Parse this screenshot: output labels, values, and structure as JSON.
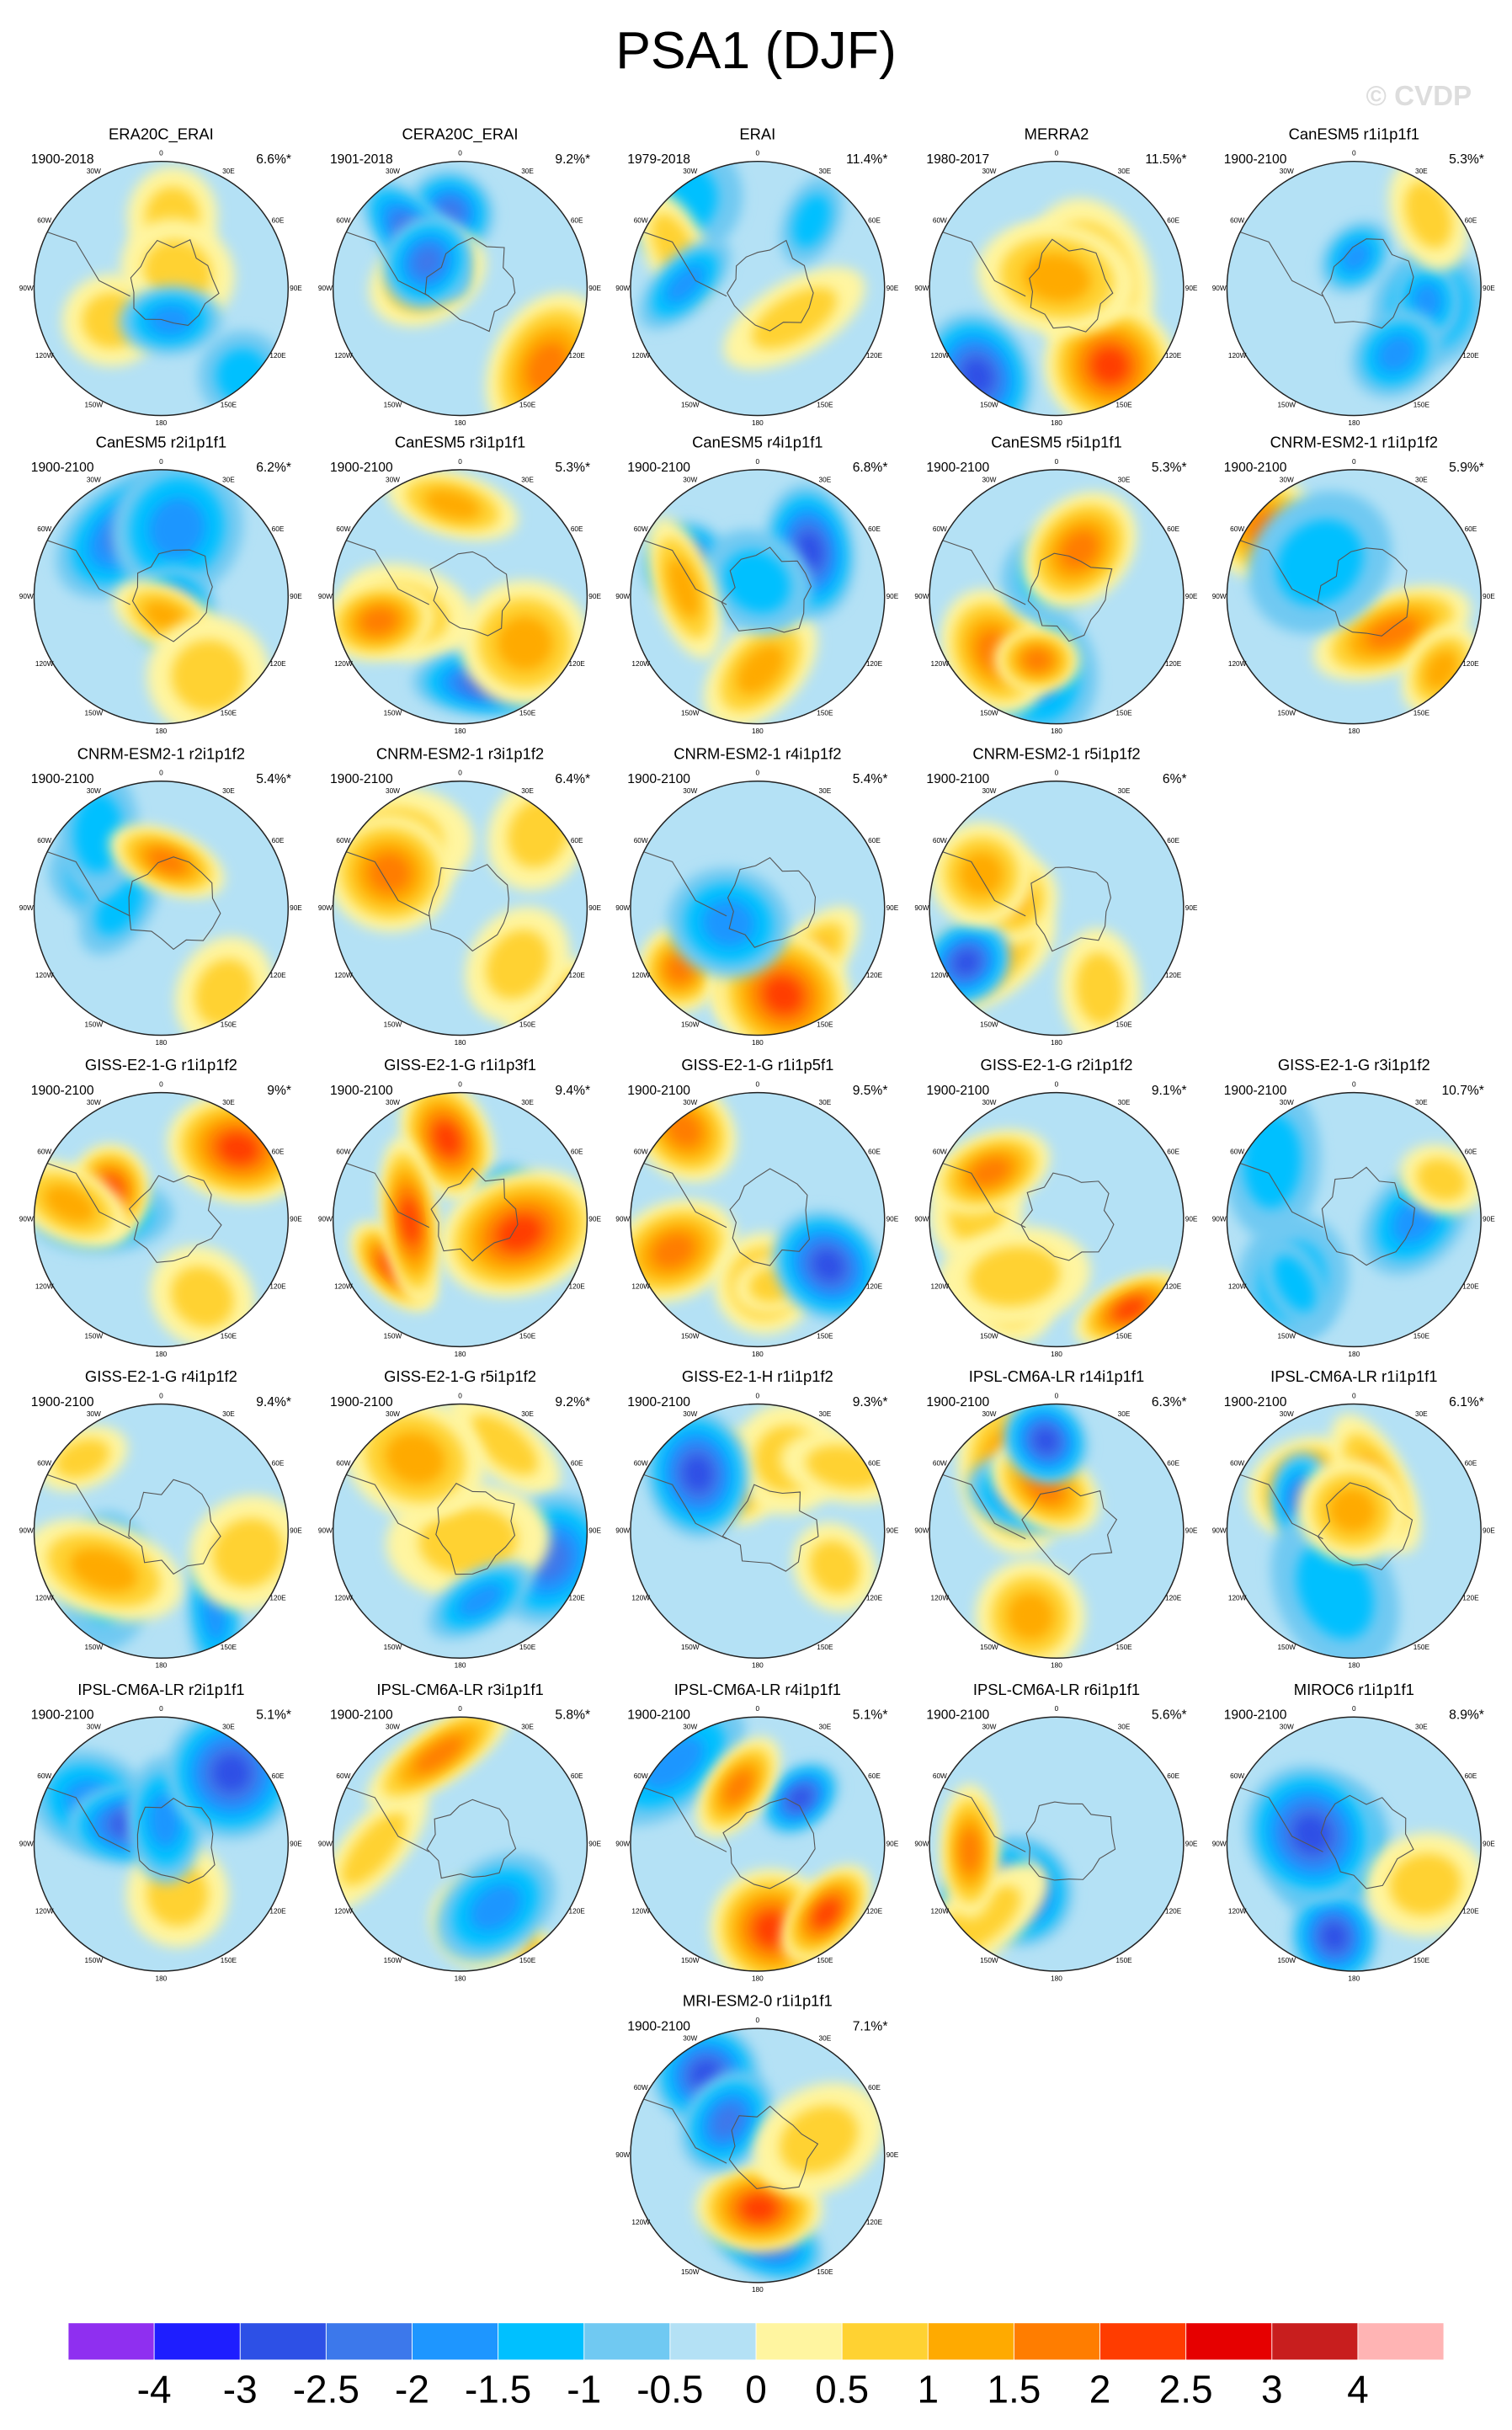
{
  "title": "PSA1 (DJF)",
  "watermark": "© CVDP",
  "longitude_labels": [
    "0",
    "30E",
    "60E",
    "90E",
    "120E",
    "150E",
    "180",
    "150W",
    "120W",
    "90W",
    "60W",
    "30W"
  ],
  "panels": [
    {
      "title": "ERA20C_ERAI",
      "period": "1900-2018",
      "variance": "6.6%*"
    },
    {
      "title": "CERA20C_ERAI",
      "period": "1901-2018",
      "variance": "9.2%*"
    },
    {
      "title": "ERAI",
      "period": "1979-2018",
      "variance": "11.4%*"
    },
    {
      "title": "MERRA2",
      "period": "1980-2017",
      "variance": "11.5%*"
    },
    {
      "title": "CanESM5 r1i1p1f1",
      "period": "1900-2100",
      "variance": "5.3%*"
    },
    {
      "title": "CanESM5 r2i1p1f1",
      "period": "1900-2100",
      "variance": "6.2%*"
    },
    {
      "title": "CanESM5 r3i1p1f1",
      "period": "1900-2100",
      "variance": "5.3%*"
    },
    {
      "title": "CanESM5 r4i1p1f1",
      "period": "1900-2100",
      "variance": "6.8%*"
    },
    {
      "title": "CanESM5 r5i1p1f1",
      "period": "1900-2100",
      "variance": "5.3%*"
    },
    {
      "title": "CNRM-ESM2-1 r1i1p1f2",
      "period": "1900-2100",
      "variance": "5.9%*"
    },
    {
      "title": "CNRM-ESM2-1 r2i1p1f2",
      "period": "1900-2100",
      "variance": "5.4%*"
    },
    {
      "title": "CNRM-ESM2-1 r3i1p1f2",
      "period": "1900-2100",
      "variance": "6.4%*"
    },
    {
      "title": "CNRM-ESM2-1 r4i1p1f2",
      "period": "1900-2100",
      "variance": "5.4%*"
    },
    {
      "title": "CNRM-ESM2-1 r5i1p1f2",
      "period": "1900-2100",
      "variance": "6%*"
    },
    {
      "title": "GISS-E2-1-G r1i1p1f2",
      "period": "1900-2100",
      "variance": "9%*"
    },
    {
      "title": "GISS-E2-1-G r1i1p3f1",
      "period": "1900-2100",
      "variance": "9.4%*"
    },
    {
      "title": "GISS-E2-1-G r1i1p5f1",
      "period": "1900-2100",
      "variance": "9.5%*"
    },
    {
      "title": "GISS-E2-1-G r2i1p1f2",
      "period": "1900-2100",
      "variance": "9.1%*"
    },
    {
      "title": "GISS-E2-1-G r3i1p1f2",
      "period": "1900-2100",
      "variance": "10.7%*"
    },
    {
      "title": "GISS-E2-1-G r4i1p1f2",
      "period": "1900-2100",
      "variance": "9.4%*"
    },
    {
      "title": "GISS-E2-1-G r5i1p1f2",
      "period": "1900-2100",
      "variance": "9.2%*"
    },
    {
      "title": "GISS-E2-1-H r1i1p1f2",
      "period": "1900-2100",
      "variance": "9.3%*"
    },
    {
      "title": "IPSL-CM6A-LR r14i1p1f1",
      "period": "1900-2100",
      "variance": "6.3%*"
    },
    {
      "title": "IPSL-CM6A-LR r1i1p1f1",
      "period": "1900-2100",
      "variance": "6.1%*"
    },
    {
      "title": "IPSL-CM6A-LR r2i1p1f1",
      "period": "1900-2100",
      "variance": "5.1%*"
    },
    {
      "title": "IPSL-CM6A-LR r3i1p1f1",
      "period": "1900-2100",
      "variance": "5.8%*"
    },
    {
      "title": "IPSL-CM6A-LR r4i1p1f1",
      "period": "1900-2100",
      "variance": "5.1%*"
    },
    {
      "title": "IPSL-CM6A-LR r6i1p1f1",
      "period": "1900-2100",
      "variance": "5.6%*"
    },
    {
      "title": "MIROC6 r1i1p1f1",
      "period": "1900-2100",
      "variance": "8.9%*"
    },
    {
      "title": "MRI-ESM2-0 r1i1p1f1",
      "period": "1900-2100",
      "variance": "7.1%*"
    }
  ],
  "colorbar": {
    "levels": [
      -4,
      -3,
      -2.5,
      -2,
      -1.5,
      -1,
      -0.5,
      0,
      0.5,
      1,
      1.5,
      2,
      2.5,
      3,
      4
    ],
    "colors": [
      "#8f2ff0",
      "#1e1eff",
      "#2d50e6",
      "#3c78eb",
      "#1e96ff",
      "#00c0ff",
      "#70c9f2",
      "#b4e1f5",
      "#fff5a0",
      "#ffd232",
      "#ffaa00",
      "#ff7d00",
      "#ff3c00",
      "#e60000",
      "#c81e1e",
      "#ffb4b4"
    ]
  }
}
